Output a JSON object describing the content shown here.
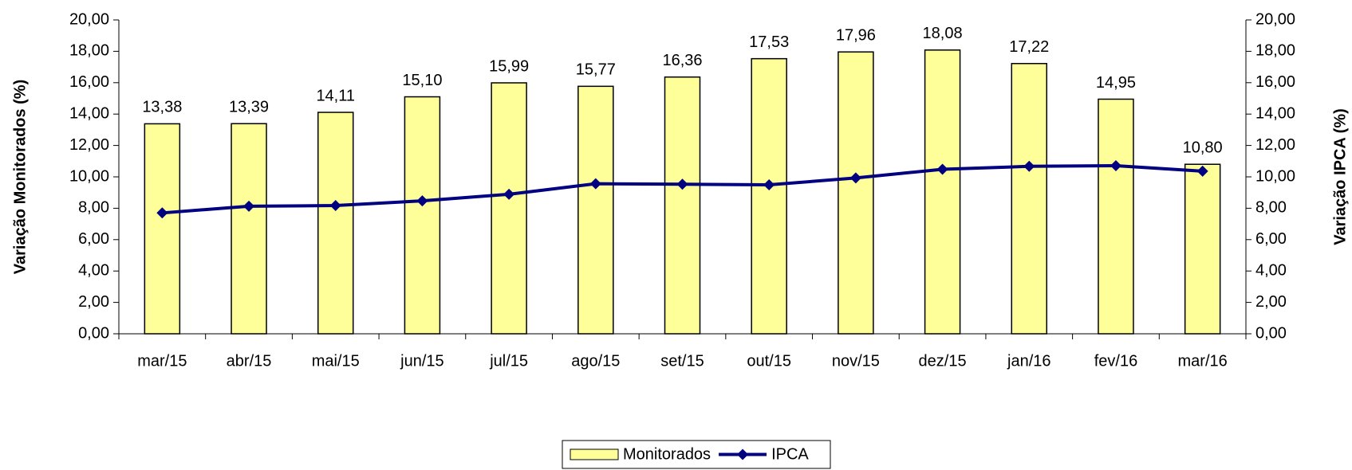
{
  "chart_data": {
    "type": "bar",
    "y_axis_label": "Variação Monitorados (%)",
    "y2_axis_label": "Variação IPCA (%)",
    "categories": [
      "mar/15",
      "abr/15",
      "mai/15",
      "jun/15",
      "jul/15",
      "ago/15",
      "set/15",
      "out/15",
      "nov/15",
      "dez/15",
      "jan/16",
      "fev/16",
      "mar/16"
    ],
    "series": [
      {
        "name": "Monitorados",
        "type": "bar",
        "color": "#ffff99",
        "values": [
          13.38,
          13.39,
          14.11,
          15.1,
          15.99,
          15.77,
          16.36,
          17.53,
          17.96,
          18.08,
          17.22,
          14.95,
          10.8
        ],
        "value_labels": [
          "13,38",
          "13,39",
          "14,11",
          "15,10",
          "15,99",
          "15,77",
          "16,36",
          "17,53",
          "17,96",
          "18,08",
          "17,22",
          "14,95",
          "10,80"
        ]
      },
      {
        "name": "IPCA",
        "type": "line",
        "axis": "y2",
        "color": "#000080",
        "values": [
          7.7,
          8.13,
          8.17,
          8.47,
          8.89,
          9.56,
          9.53,
          9.49,
          9.93,
          10.48,
          10.67,
          10.71,
          10.36
        ]
      }
    ],
    "ylim": [
      0,
      20
    ],
    "yticks": [
      {
        "value": 0,
        "label": "0,00"
      },
      {
        "value": 2,
        "label": "2,00"
      },
      {
        "value": 4,
        "label": "4,00"
      },
      {
        "value": 6,
        "label": "6,00"
      },
      {
        "value": 8,
        "label": "8,00"
      },
      {
        "value": 10,
        "label": "10,00"
      },
      {
        "value": 12,
        "label": "12,00"
      },
      {
        "value": 14,
        "label": "14,00"
      },
      {
        "value": 16,
        "label": "16,00"
      },
      {
        "value": 18,
        "label": "18,00"
      },
      {
        "value": 20,
        "label": "20,00"
      }
    ],
    "y2lim": [
      0,
      20
    ],
    "y2ticks": [
      {
        "value": 0,
        "label": "0,00"
      },
      {
        "value": 2,
        "label": "2,00"
      },
      {
        "value": 4,
        "label": "4,00"
      },
      {
        "value": 6,
        "label": "6,00"
      },
      {
        "value": 8,
        "label": "8,00"
      },
      {
        "value": 10,
        "label": "10,00"
      },
      {
        "value": 12,
        "label": "12,00"
      },
      {
        "value": 14,
        "label": "14,00"
      },
      {
        "value": 16,
        "label": "16,00"
      },
      {
        "value": 18,
        "label": "18,00"
      },
      {
        "value": 20,
        "label": "20,00"
      }
    ],
    "grid": false,
    "legend": "bottom"
  }
}
